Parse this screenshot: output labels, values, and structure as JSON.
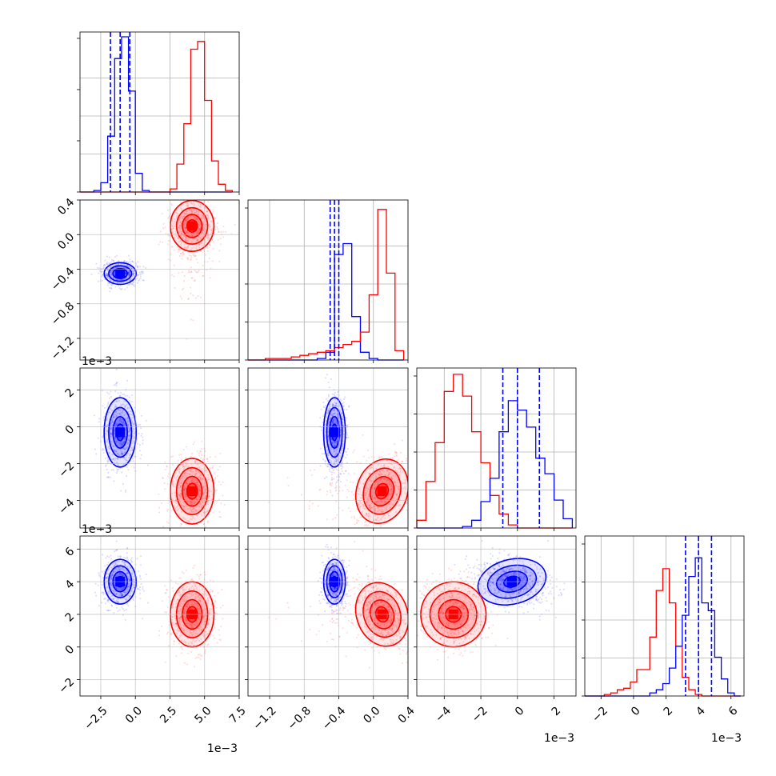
{
  "chart_data": {
    "type": "corner",
    "title": "",
    "n_params": 4,
    "colors": {
      "A": "#ff0000",
      "B": "#0000ff"
    },
    "grid": true,
    "parameters": [
      {
        "index": 0,
        "range": [
          -4.0,
          7.5
        ],
        "scale_factor": "1e-3",
        "ticks": [
          -2.5,
          0.0,
          2.5,
          5.0,
          7.5
        ],
        "tick_labels": [
          "−2.5",
          "0.0",
          "2.5",
          "5.0",
          "7.5"
        ]
      },
      {
        "index": 1,
        "range": [
          -1.45,
          0.4
        ],
        "scale_factor": "",
        "ticks": [
          -1.2,
          -0.8,
          -0.4,
          0.0,
          0.4
        ],
        "tick_labels": [
          "−1.2",
          "−0.8",
          "−0.4",
          "0.0",
          "0.4"
        ]
      },
      {
        "index": 2,
        "range": [
          -5.5,
          3.2
        ],
        "scale_factor": "1e-3",
        "ticks": [
          -4,
          -2,
          0,
          2
        ],
        "tick_labels": [
          "−4",
          "−2",
          "0",
          "2"
        ]
      },
      {
        "index": 3,
        "range": [
          -3.0,
          6.8
        ],
        "scale_factor": "1e-3",
        "ticks": [
          -2,
          0,
          2,
          4,
          6
        ],
        "tick_labels": [
          "−2",
          "0",
          "2",
          "4",
          "6"
        ]
      }
    ],
    "multiplier_labels": [
      {
        "id": "row2-y",
        "text": "1e−3"
      },
      {
        "id": "row3-y",
        "text": "1e−3"
      },
      {
        "id": "col0-x",
        "text": "1e−3"
      },
      {
        "id": "col2-x",
        "text": "1e−3"
      },
      {
        "id": "col3-x",
        "text": "1e−3"
      }
    ],
    "histograms": [
      {
        "param": 0,
        "edges": [
          -4.0,
          -3.5,
          -3.0,
          -2.5,
          -2.0,
          -1.5,
          -1.0,
          -0.5,
          0.0,
          0.5,
          1.0,
          1.5,
          2.0,
          2.5,
          3.0,
          3.5,
          4.0,
          4.5,
          5.0,
          5.5,
          6.0,
          6.5,
          7.0
        ],
        "series": [
          {
            "id": "B",
            "counts": [
              0,
              0,
              0.01,
              0.06,
              0.36,
              0.86,
              1.0,
              0.65,
              0.12,
              0.01,
              0,
              0,
              0,
              0,
              0,
              0,
              0,
              0,
              0,
              0,
              0,
              0
            ]
          },
          {
            "id": "A",
            "counts": [
              0,
              0,
              0,
              0,
              0,
              0,
              0,
              0,
              0,
              0,
              0,
              0,
              0,
              0.02,
              0.18,
              0.44,
              0.92,
              0.97,
              0.59,
              0.2,
              0.05,
              0.01
            ]
          }
        ],
        "quantiles": [
          -1.8,
          -1.1,
          -0.4
        ]
      },
      {
        "param": 1,
        "edges": [
          -1.45,
          -1.35,
          -1.25,
          -1.15,
          -1.05,
          -0.95,
          -0.85,
          -0.75,
          -0.65,
          -0.55,
          -0.45,
          -0.35,
          -0.25,
          -0.15,
          -0.05,
          0.05,
          0.15,
          0.25,
          0.35
        ],
        "series": [
          {
            "id": "B",
            "counts": [
              0,
              0,
              0,
              0,
              0,
              0,
              0,
              0,
              0.01,
              0.05,
              0.68,
              0.75,
              0.28,
              0.05,
              0.01,
              0,
              0,
              0
            ]
          },
          {
            "id": "A",
            "counts": [
              0,
              0,
              0.01,
              0.01,
              0.01,
              0.02,
              0.03,
              0.04,
              0.05,
              0.06,
              0.08,
              0.1,
              0.12,
              0.18,
              0.42,
              0.97,
              0.56,
              0.06
            ]
          }
        ],
        "quantiles": [
          -0.5,
          -0.45,
          -0.4
        ]
      },
      {
        "param": 2,
        "edges": [
          -5.5,
          -5.0,
          -4.5,
          -4.0,
          -3.5,
          -3.0,
          -2.5,
          -2.0,
          -1.5,
          -1.0,
          -0.5,
          0.0,
          0.5,
          1.0,
          1.5,
          2.0,
          2.5,
          3.0
        ],
        "series": [
          {
            "id": "A",
            "counts": [
              0.05,
              0.3,
              0.55,
              0.88,
              0.99,
              0.85,
              0.62,
              0.42,
              0.21,
              0.09,
              0.02,
              0,
              0,
              0,
              0,
              0,
              0
            ]
          },
          {
            "id": "B",
            "counts": [
              0,
              0,
              0,
              0,
              0,
              0.01,
              0.05,
              0.17,
              0.32,
              0.62,
              0.82,
              0.76,
              0.65,
              0.45,
              0.35,
              0.18,
              0.06
            ]
          }
        ],
        "quantiles": [
          -0.8,
          0.0,
          1.2
        ]
      },
      {
        "param": 3,
        "edges": [
          -3.0,
          -2.6,
          -2.2,
          -1.8,
          -1.4,
          -1.0,
          -0.6,
          -0.2,
          0.2,
          0.6,
          1.0,
          1.4,
          1.8,
          2.2,
          2.6,
          3.0,
          3.4,
          3.8,
          4.2,
          4.6,
          5.0,
          5.4,
          5.8,
          6.2,
          6.6
        ],
        "series": [
          {
            "id": "A",
            "counts": [
              0,
              0,
              0,
              0.01,
              0.02,
              0.04,
              0.05,
              0.09,
              0.17,
              0.17,
              0.38,
              0.68,
              0.82,
              0.6,
              0.32,
              0.12,
              0.04,
              0.01,
              0,
              0,
              0,
              0,
              0,
              0
            ]
          },
          {
            "id": "B",
            "counts": [
              0,
              0,
              0,
              0,
              0,
              0,
              0,
              0,
              0,
              0,
              0.02,
              0.04,
              0.08,
              0.18,
              0.32,
              0.52,
              0.77,
              0.89,
              0.6,
              0.55,
              0.25,
              0.11,
              0.02,
              0
            ]
          }
        ],
        "quantiles": [
          3.2,
          4.0,
          4.8
        ]
      }
    ],
    "clusters": [
      {
        "id": "B",
        "means": [
          -1.1,
          -0.45,
          -0.3,
          4.0
        ],
        "sds": [
          0.55,
          0.06,
          0.9,
          0.65
        ]
      },
      {
        "id": "A",
        "means": [
          4.1,
          0.1,
          -3.5,
          2.0
        ],
        "sds": [
          0.75,
          0.14,
          0.85,
          0.95
        ]
      }
    ]
  }
}
